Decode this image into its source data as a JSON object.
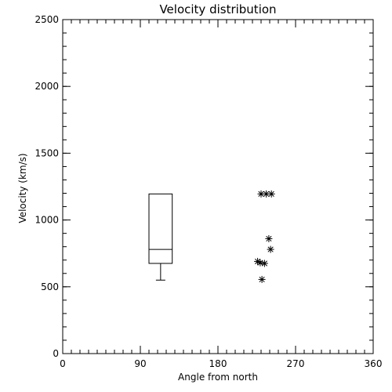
{
  "chart_data": {
    "type": "scatter",
    "title": "Velocity distribution",
    "xlabel": "Angle from north",
    "ylabel": "Velocity (km/s)",
    "xlim": [
      0,
      360
    ],
    "ylim": [
      0,
      2500
    ],
    "xticks": [
      0,
      90,
      180,
      270,
      360
    ],
    "yticks": [
      0,
      500,
      1000,
      1500,
      2000,
      2500
    ],
    "x_minor_step": 10,
    "y_minor_step": 100,
    "grid": false,
    "boxplot": {
      "x_left": 100,
      "x_right": 127,
      "whisker_low": 550,
      "q1": 675,
      "median": 780,
      "q3": 1195,
      "whisker_high": 1195
    },
    "points": [
      {
        "x": 230,
        "y": 1195
      },
      {
        "x": 236,
        "y": 1195
      },
      {
        "x": 242,
        "y": 1195
      },
      {
        "x": 239,
        "y": 860
      },
      {
        "x": 241,
        "y": 780
      },
      {
        "x": 226,
        "y": 690
      },
      {
        "x": 229,
        "y": 680
      },
      {
        "x": 234,
        "y": 675
      },
      {
        "x": 231,
        "y": 555
      }
    ],
    "marker": "asterisk",
    "color": "#000000"
  }
}
